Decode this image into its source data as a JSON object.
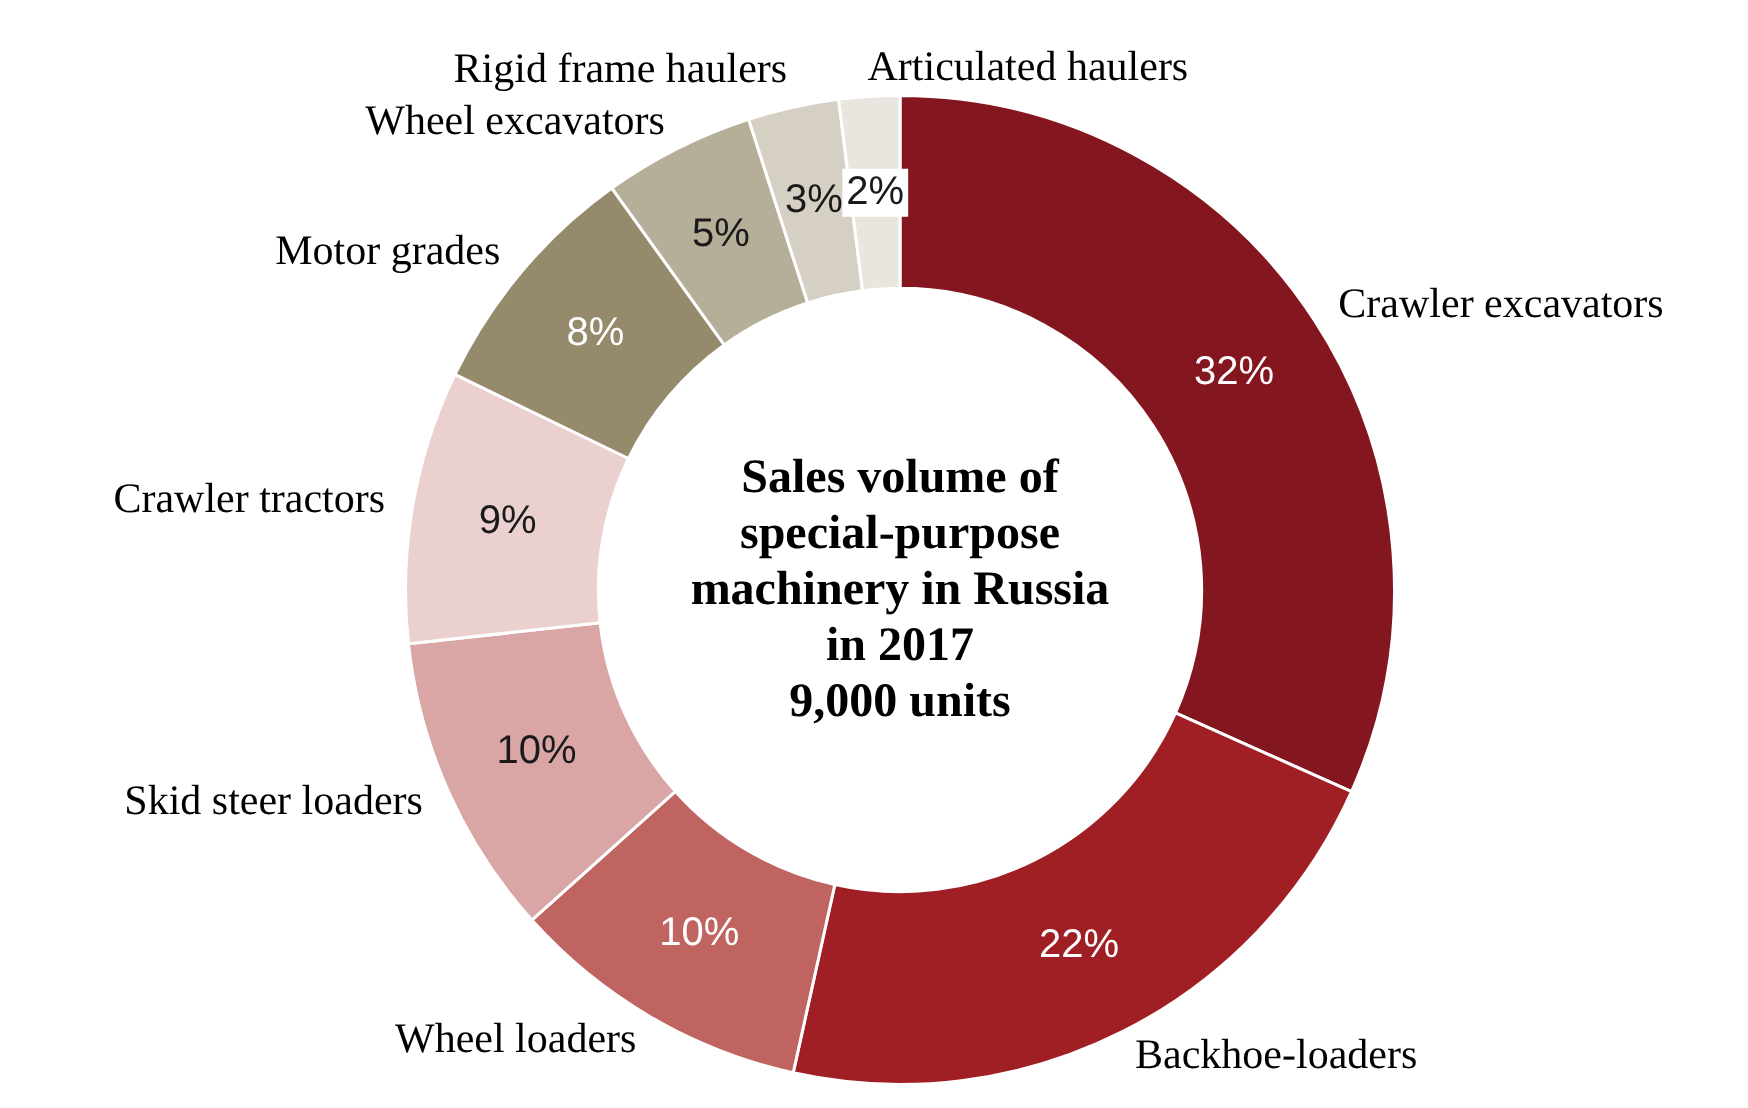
{
  "chart_data": {
    "type": "donut",
    "title": "Sales volume of special-purpose machinery in Russia in 2017",
    "subtitle": "9,000 units",
    "categories": [
      "Crawler excavators",
      "Backhoe-loaders",
      "Wheel loaders",
      "Skid steer loaders",
      "Crawler tractors",
      "Motor grades",
      "Wheel excavators",
      "Rigid frame haulers",
      "Articulated haulers"
    ],
    "values": [
      32,
      22,
      10,
      10,
      9,
      8,
      5,
      3,
      2
    ],
    "value_labels": [
      "32%",
      "22%",
      "10%",
      "10%",
      "9%",
      "8%",
      "5%",
      "3%",
      "2%"
    ],
    "colors": [
      "#841620",
      "#a01f24",
      "#c06462",
      "#d9a5a5",
      "#ebd0d0",
      "#958a6c",
      "#b5ae98",
      "#d6d0c4",
      "#e9e6df"
    ],
    "legend": false
  }
}
